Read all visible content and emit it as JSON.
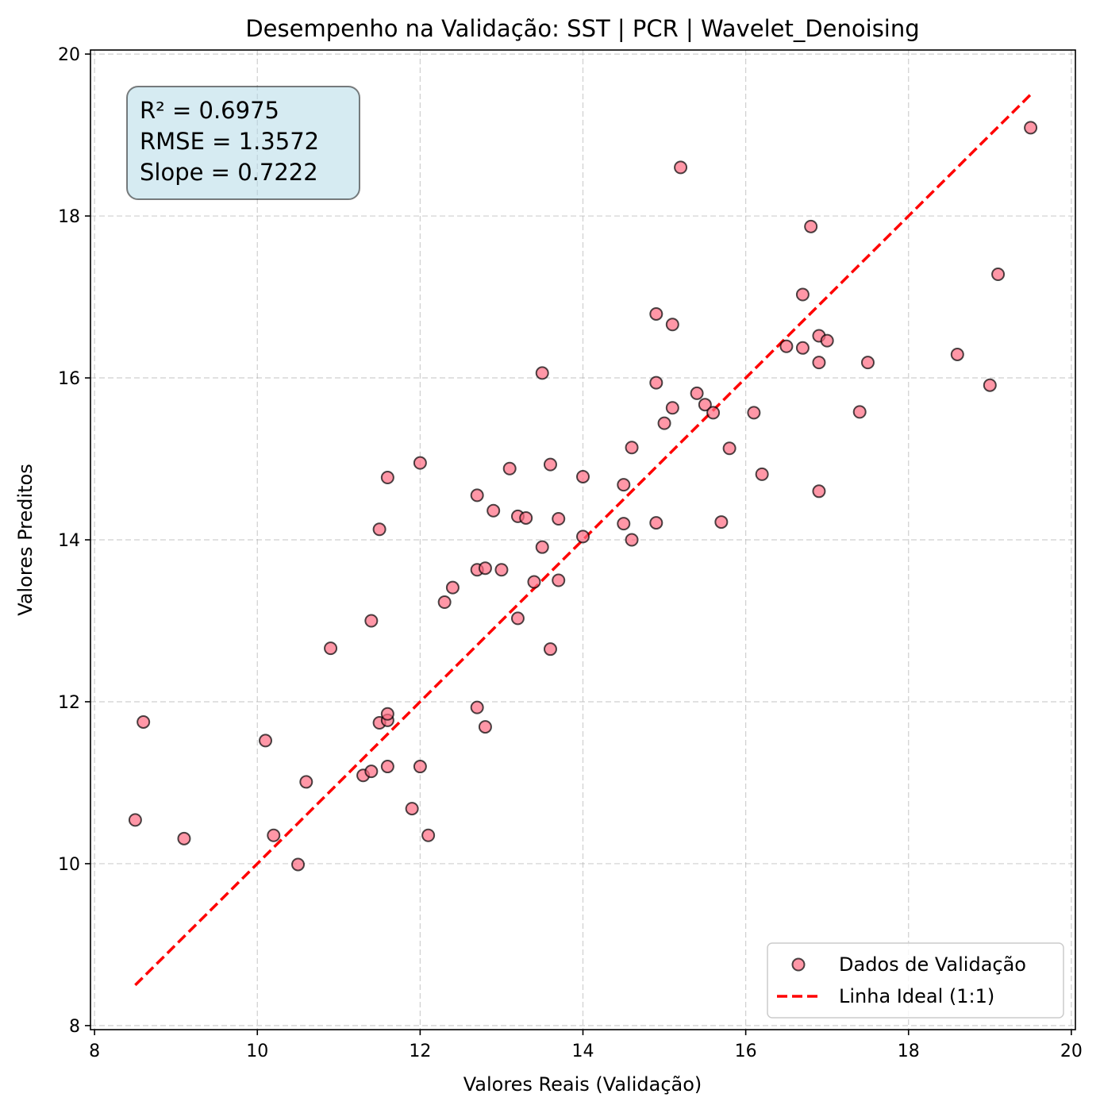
{
  "chart_data": {
    "type": "scatter",
    "title": "Desempenho na Validação: SST | PCR | Wavelet_Denoising",
    "xlabel": "Valores Reais (Validação)",
    "ylabel": "Valores Preditos",
    "xlim": [
      7.95,
      20.05
    ],
    "ylim": [
      7.95,
      20.05
    ],
    "xticks": [
      8,
      10,
      12,
      14,
      16,
      18,
      20
    ],
    "yticks": [
      8,
      10,
      12,
      14,
      16,
      18,
      20
    ],
    "grid": true,
    "legend_position": "lower-right",
    "stats": [
      "R² = 0.6975",
      "RMSE = 1.3572",
      "Slope = 0.7222"
    ],
    "series": [
      {
        "name": "Dados de Validação",
        "kind": "scatter",
        "color": "#ff6b81",
        "points": [
          [
            8.5,
            10.54
          ],
          [
            8.6,
            11.75
          ],
          [
            9.1,
            10.31
          ],
          [
            10.1,
            11.52
          ],
          [
            10.2,
            10.35
          ],
          [
            10.5,
            9.99
          ],
          [
            10.6,
            11.01
          ],
          [
            10.9,
            12.66
          ],
          [
            11.3,
            11.09
          ],
          [
            11.4,
            11.14
          ],
          [
            11.4,
            13.0
          ],
          [
            11.5,
            11.74
          ],
          [
            11.5,
            14.13
          ],
          [
            11.6,
            11.77
          ],
          [
            11.6,
            11.85
          ],
          [
            11.6,
            11.2
          ],
          [
            11.6,
            14.77
          ],
          [
            11.9,
            10.68
          ],
          [
            12.0,
            11.2
          ],
          [
            12.0,
            14.95
          ],
          [
            12.1,
            10.35
          ],
          [
            12.3,
            13.23
          ],
          [
            12.4,
            13.41
          ],
          [
            12.7,
            11.93
          ],
          [
            12.7,
            13.63
          ],
          [
            12.7,
            14.55
          ],
          [
            12.8,
            11.69
          ],
          [
            12.8,
            13.65
          ],
          [
            12.9,
            14.36
          ],
          [
            13.0,
            13.63
          ],
          [
            13.1,
            14.88
          ],
          [
            13.2,
            13.03
          ],
          [
            13.2,
            14.29
          ],
          [
            13.3,
            14.27
          ],
          [
            13.4,
            13.48
          ],
          [
            13.5,
            13.91
          ],
          [
            13.5,
            16.06
          ],
          [
            13.6,
            12.65
          ],
          [
            13.6,
            14.93
          ],
          [
            13.7,
            13.5
          ],
          [
            13.7,
            14.26
          ],
          [
            14.0,
            14.04
          ],
          [
            14.0,
            14.78
          ],
          [
            14.5,
            14.2
          ],
          [
            14.5,
            14.68
          ],
          [
            14.6,
            14.0
          ],
          [
            14.6,
            15.14
          ],
          [
            14.9,
            14.21
          ],
          [
            14.9,
            15.94
          ],
          [
            14.9,
            16.79
          ],
          [
            15.0,
            15.44
          ],
          [
            15.1,
            15.63
          ],
          [
            15.1,
            16.66
          ],
          [
            15.2,
            18.6
          ],
          [
            15.4,
            15.81
          ],
          [
            15.5,
            15.67
          ],
          [
            15.6,
            15.57
          ],
          [
            15.7,
            14.22
          ],
          [
            15.8,
            15.13
          ],
          [
            16.1,
            15.57
          ],
          [
            16.2,
            14.81
          ],
          [
            16.5,
            16.39
          ],
          [
            16.7,
            16.37
          ],
          [
            16.7,
            17.03
          ],
          [
            16.8,
            17.87
          ],
          [
            16.9,
            14.6
          ],
          [
            16.9,
            16.19
          ],
          [
            16.9,
            16.52
          ],
          [
            17.0,
            16.46
          ],
          [
            17.4,
            15.58
          ],
          [
            17.5,
            16.19
          ],
          [
            18.6,
            16.29
          ],
          [
            19.0,
            15.91
          ],
          [
            19.1,
            17.28
          ],
          [
            19.5,
            19.09
          ]
        ]
      },
      {
        "name": "Linha Ideal (1:1)",
        "kind": "line",
        "style": "dashed",
        "color": "#ff0000",
        "x": [
          8.5,
          19.5
        ],
        "y": [
          8.5,
          19.5
        ]
      }
    ]
  }
}
